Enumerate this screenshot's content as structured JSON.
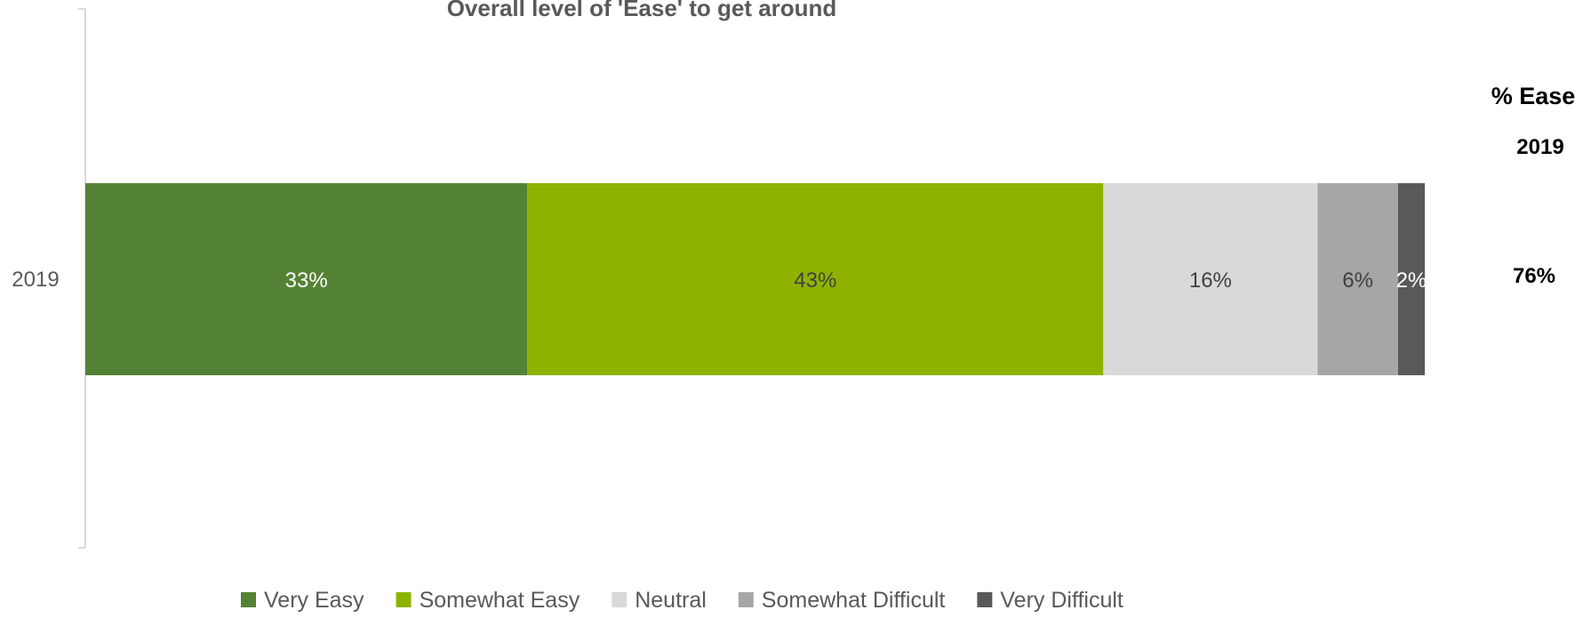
{
  "chart_data": {
    "type": "bar",
    "orientation": "horizontal",
    "stacked": true,
    "title": "Overall level of 'Ease' to get around",
    "categories": [
      "2019"
    ],
    "series": [
      {
        "name": "Very Easy",
        "values": [
          33
        ],
        "label": "33%",
        "color": "#548235",
        "label_color": "#ffffff"
      },
      {
        "name": "Somewhat Easy",
        "values": [
          43
        ],
        "label": "43%",
        "color": "#8DB300",
        "label_color": "#404040"
      },
      {
        "name": "Neutral",
        "values": [
          16
        ],
        "label": "16%",
        "color": "#D9D9D9",
        "label_color": "#404040"
      },
      {
        "name": "Somewhat Difficult",
        "values": [
          6
        ],
        "label": "6%",
        "color": "#A6A6A6",
        "label_color": "#404040"
      },
      {
        "name": "Very Difficult",
        "values": [
          2
        ],
        "label": "2%",
        "color": "#595959",
        "label_color": "#ffffff"
      }
    ],
    "xlim": [
      0,
      100
    ],
    "legend_position": "bottom",
    "grid": false
  },
  "side_table": {
    "heading": "% Ease",
    "year": "2019",
    "value": "76%"
  }
}
